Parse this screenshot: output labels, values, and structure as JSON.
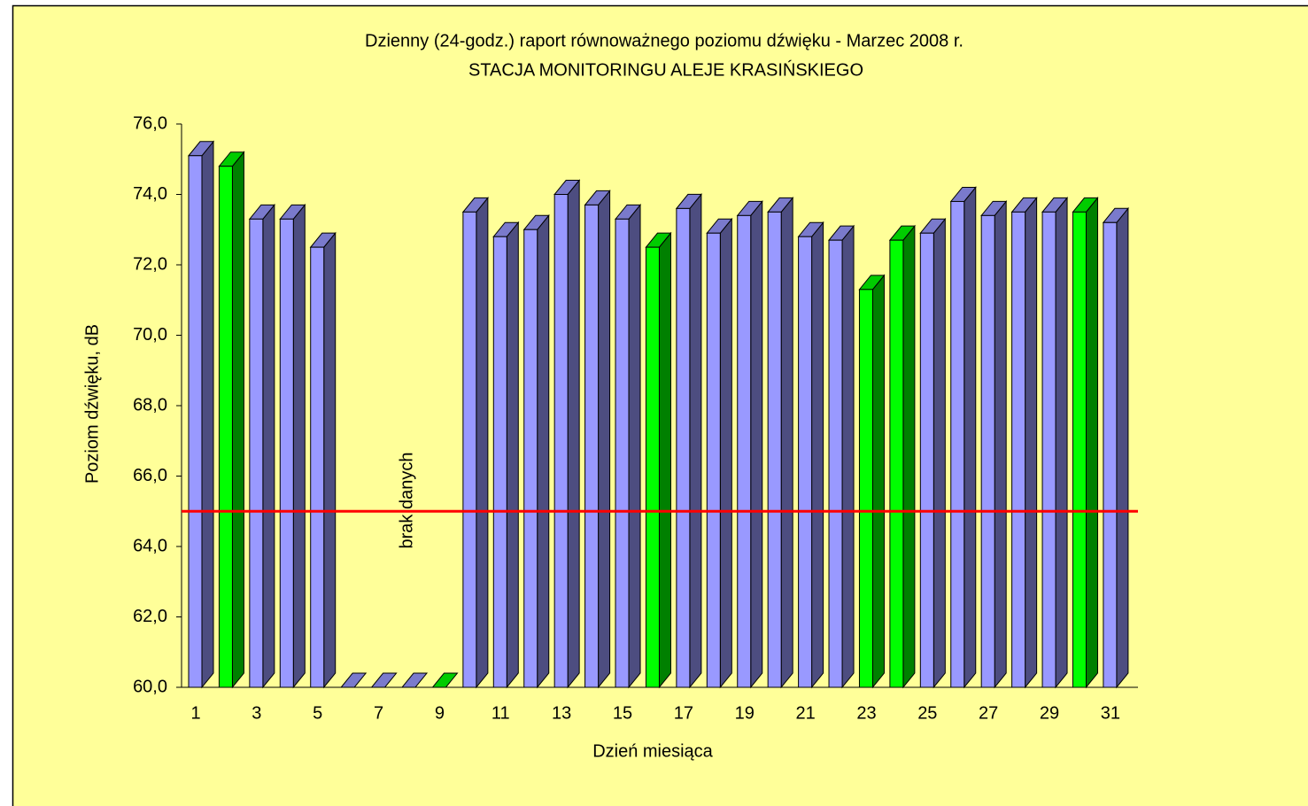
{
  "chart_data": {
    "type": "bar3d",
    "title": "Dzienny (24-godz.) raport równoważnego poziomu dźwięku - Marzec 2008 r.",
    "subtitle": "STACJA MONITORINGU ALEJE KRASIŃSKIEGO",
    "y_label": "Poziom dźwięku, dB",
    "x_label": "Dzień miesiąca",
    "annotation": "brak danych",
    "categories": [
      1,
      null,
      3,
      null,
      5,
      null,
      7,
      null,
      9,
      null,
      11,
      null,
      13,
      null,
      15,
      null,
      17,
      null,
      19,
      null,
      21,
      null,
      23,
      null,
      25,
      null,
      27,
      null,
      29,
      null,
      31
    ],
    "values": [
      75.1,
      74.8,
      73.3,
      73.3,
      72.5,
      null,
      null,
      null,
      null,
      73.5,
      72.8,
      73.0,
      74.0,
      73.7,
      73.3,
      72.5,
      73.6,
      72.9,
      73.4,
      73.5,
      72.8,
      72.7,
      71.3,
      72.7,
      72.9,
      73.8,
      73.4,
      73.5,
      73.5,
      73.5,
      73.2
    ],
    "colors": [
      "#9999ff",
      "#00ff00",
      "#9999ff",
      "#9999ff",
      "#9999ff",
      "#9999ff",
      "#9999ff",
      "#9999ff",
      "#00ff00",
      "#9999ff",
      "#9999ff",
      "#9999ff",
      "#9999ff",
      "#9999ff",
      "#9999ff",
      "#00ff00",
      "#9999ff",
      "#9999ff",
      "#9999ff",
      "#9999ff",
      "#9999ff",
      "#9999ff",
      "#00ff00",
      "#00ff00",
      "#9999ff",
      "#9999ff",
      "#9999ff",
      "#9999ff",
      "#9999ff",
      "#00ff00",
      "#9999ff"
    ],
    "ylim": [
      60,
      76
    ],
    "yticks": [
      {
        "value": 60,
        "label": "60,0"
      },
      {
        "value": 62,
        "label": "62,0"
      },
      {
        "value": 64,
        "label": "64,0"
      },
      {
        "value": 66,
        "label": "66,0"
      },
      {
        "value": 68,
        "label": "68,0"
      },
      {
        "value": 70,
        "label": "70,0"
      },
      {
        "value": 72,
        "label": "72,0"
      },
      {
        "value": 74,
        "label": "74,0"
      },
      {
        "value": 76,
        "label": "76,0"
      }
    ],
    "reference_line": {
      "value": 65,
      "color": "#ff0000"
    },
    "background": "#ffff99"
  }
}
